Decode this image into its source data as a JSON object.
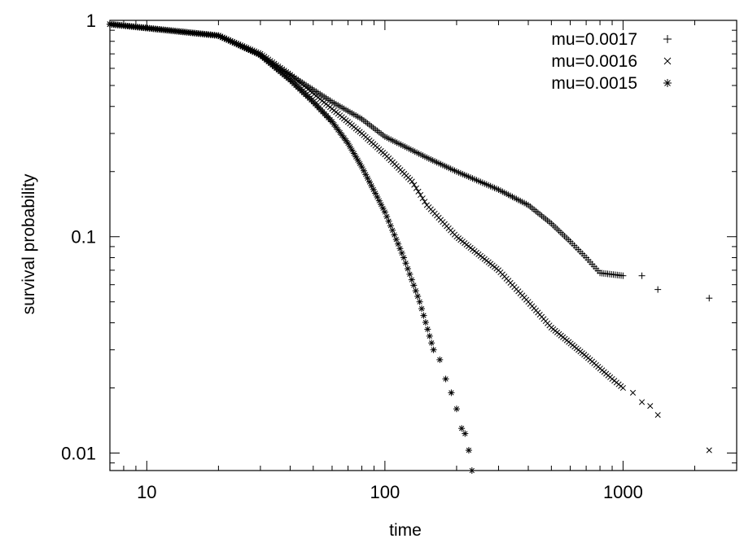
{
  "chart_data": {
    "type": "scatter",
    "xscale": "log",
    "yscale": "log",
    "xlim": [
      7,
      3000
    ],
    "ylim": [
      0.0083,
      1
    ],
    "xlabel": "time",
    "ylabel": "survival probability",
    "xticks": [
      {
        "value": 10,
        "label": "10"
      },
      {
        "value": 100,
        "label": "100"
      },
      {
        "value": 1000,
        "label": "1000"
      }
    ],
    "yticks": [
      {
        "value": 0.01,
        "label": "0.01"
      },
      {
        "value": 0.1,
        "label": "0.1"
      },
      {
        "value": 1,
        "label": "1"
      }
    ],
    "grid": false,
    "legend_position": "top-right",
    "series": [
      {
        "name": "mu=0.0017",
        "marker": "plus",
        "curve": [
          [
            7,
            0.96
          ],
          [
            20,
            0.85
          ],
          [
            30,
            0.69
          ],
          [
            40,
            0.56
          ],
          [
            60,
            0.42
          ],
          [
            80,
            0.35
          ],
          [
            100,
            0.29
          ],
          [
            150,
            0.232
          ],
          [
            200,
            0.2
          ],
          [
            300,
            0.165
          ],
          [
            400,
            0.14
          ],
          [
            500,
            0.115
          ],
          [
            600,
            0.095
          ],
          [
            700,
            0.08
          ],
          [
            800,
            0.068
          ],
          [
            1000,
            0.066
          ]
        ],
        "outliers": [
          [
            1200,
            0.066
          ],
          [
            1400,
            0.057
          ],
          [
            2300,
            0.052
          ]
        ]
      },
      {
        "name": "mu=0.0016",
        "marker": "cross",
        "curve": [
          [
            7,
            0.96
          ],
          [
            20,
            0.85
          ],
          [
            30,
            0.7
          ],
          [
            40,
            0.56
          ],
          [
            60,
            0.39
          ],
          [
            80,
            0.3
          ],
          [
            100,
            0.24
          ],
          [
            130,
            0.18
          ],
          [
            150,
            0.14
          ],
          [
            200,
            0.1
          ],
          [
            300,
            0.07
          ],
          [
            400,
            0.05
          ],
          [
            500,
            0.038
          ],
          [
            700,
            0.028
          ],
          [
            900,
            0.022
          ],
          [
            1000,
            0.02
          ]
        ],
        "outliers": [
          [
            1100,
            0.019
          ],
          [
            1200,
            0.0172
          ],
          [
            1300,
            0.0165
          ],
          [
            1400,
            0.015
          ],
          [
            2300,
            0.0103
          ]
        ]
      },
      {
        "name": "mu=0.0015",
        "marker": "star",
        "curve": [
          [
            7,
            0.96
          ],
          [
            20,
            0.85
          ],
          [
            30,
            0.69
          ],
          [
            40,
            0.53
          ],
          [
            50,
            0.42
          ],
          [
            60,
            0.34
          ],
          [
            70,
            0.27
          ],
          [
            80,
            0.21
          ],
          [
            100,
            0.13
          ],
          [
            120,
            0.08
          ],
          [
            140,
            0.05
          ],
          [
            160,
            0.03
          ]
        ],
        "outliers": [
          [
            170,
            0.027
          ],
          [
            180,
            0.022
          ],
          [
            190,
            0.019
          ],
          [
            200,
            0.016
          ],
          [
            210,
            0.013
          ],
          [
            217,
            0.0123
          ],
          [
            225,
            0.0103
          ],
          [
            232,
            0.0083
          ]
        ]
      }
    ]
  }
}
